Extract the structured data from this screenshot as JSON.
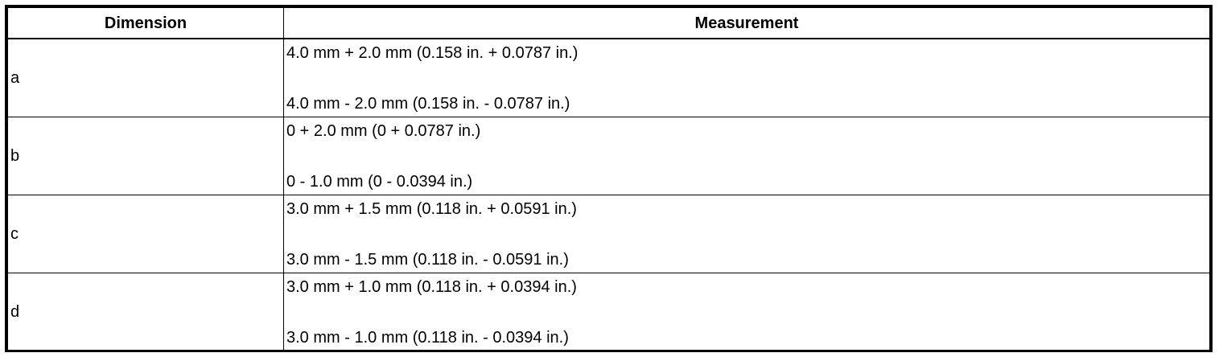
{
  "table": {
    "headers": {
      "dimension": "Dimension",
      "measurement": "Measurement"
    },
    "rows": [
      {
        "dimension": "a",
        "upper": "4.0 mm + 2.0 mm (0.158 in. + 0.0787 in.)",
        "lower": "4.0 mm - 2.0 mm (0.158 in. - 0.0787 in.)"
      },
      {
        "dimension": "b",
        "upper": "0 + 2.0 mm (0 + 0.0787 in.)",
        "lower": "0 - 1.0 mm (0 - 0.0394 in.)"
      },
      {
        "dimension": "c",
        "upper": "3.0 mm + 1.5 mm (0.118 in. + 0.0591 in.)",
        "lower": "3.0 mm - 1.5 mm (0.118 in. - 0.0591 in.)"
      },
      {
        "dimension": "d",
        "upper": "3.0 mm + 1.0 mm (0.118 in. + 0.0394 in.)",
        "lower": "3.0 mm - 1.0 mm (0.118 in. - 0.0394 in.)"
      }
    ]
  }
}
